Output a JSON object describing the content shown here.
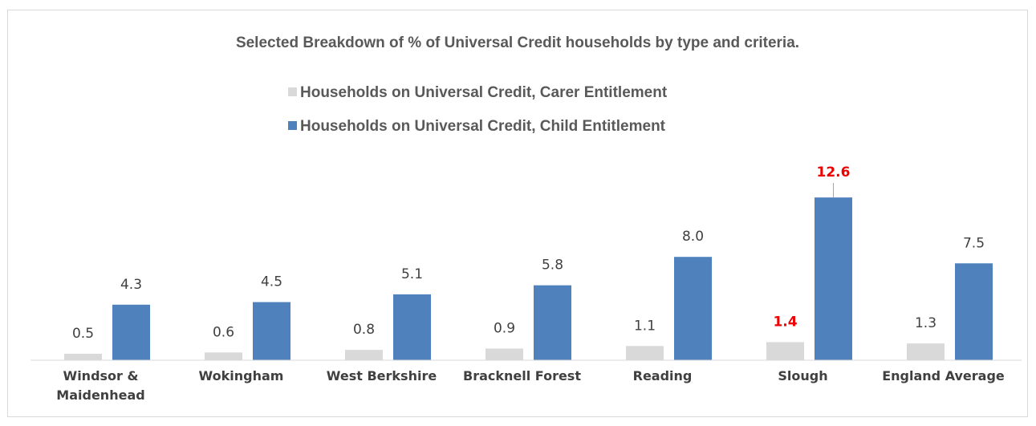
{
  "chart_data": {
    "type": "bar",
    "title": "Selected Breakdown of % of Universal Credit households by type and criteria.",
    "categories": [
      [
        "Windsor &",
        "Maidenhead"
      ],
      [
        "Wokingham"
      ],
      [
        "West Berkshire"
      ],
      [
        "Bracknell Forest"
      ],
      [
        "Reading"
      ],
      [
        "Slough"
      ],
      [
        "England Average"
      ]
    ],
    "series": [
      {
        "name": "Households on Universal Credit, Carer Entitlement",
        "color": "#d9d9d9",
        "values": [
          0.5,
          0.6,
          0.8,
          0.9,
          1.1,
          1.4,
          1.3
        ],
        "labels": [
          "0.5",
          "0.6",
          "0.8",
          "0.9",
          "1.1",
          "1.4",
          "1.3"
        ]
      },
      {
        "name": "Households on Universal Credit, Child Entitlement",
        "color": "#4f81bd",
        "values": [
          4.3,
          4.5,
          5.1,
          5.8,
          8.0,
          12.6,
          7.5
        ],
        "labels": [
          "4.3",
          "4.5",
          "5.1",
          "5.8",
          "8.0",
          "12.6",
          "7.5"
        ]
      }
    ],
    "highlight_category": "Slough",
    "highlight_color": "#ee0000",
    "ylim": [
      0,
      14
    ],
    "legend_position": "top",
    "grid": false
  }
}
